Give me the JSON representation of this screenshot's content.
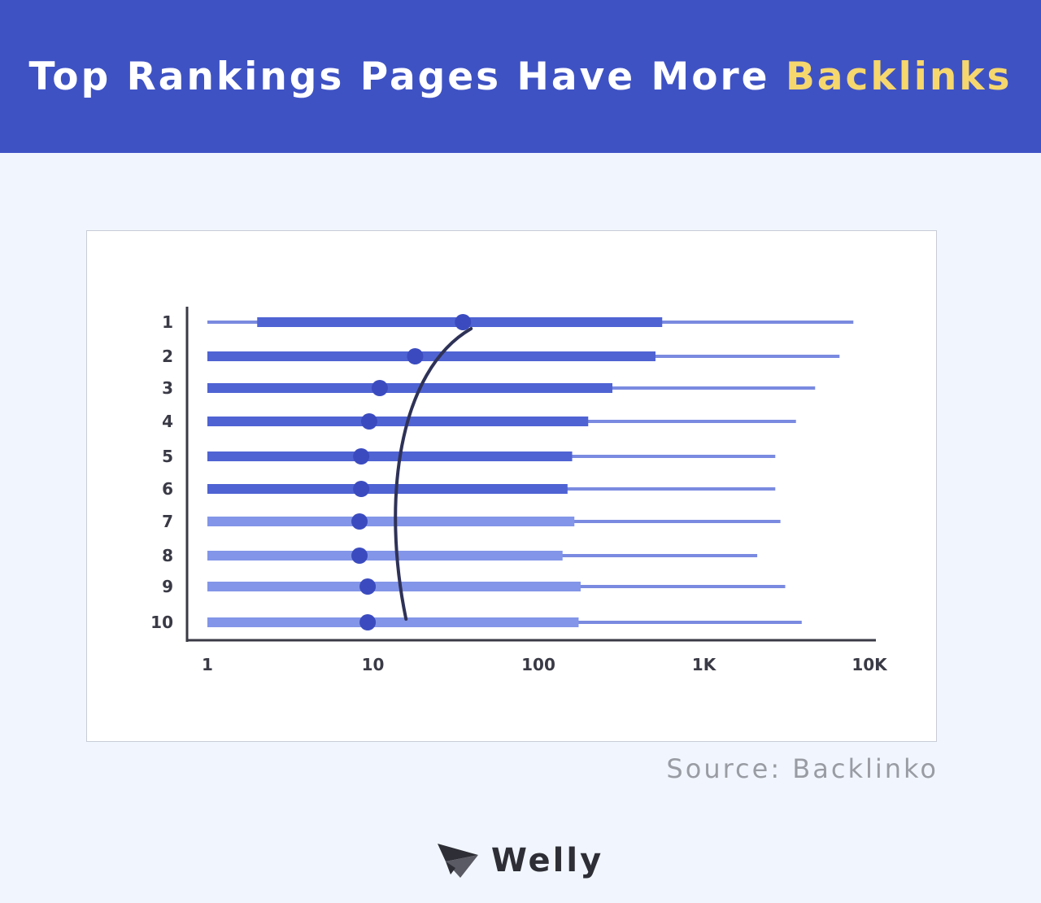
{
  "header": {
    "title_main": "Top Rankings Pages Have More",
    "title_highlight": "Backlinks",
    "bg_color": "#3f52c4",
    "highlight_color": "#f5d76e"
  },
  "chart_data": {
    "type": "bar",
    "title": "Top Rankings Pages Have More Backlinks",
    "x_scale": "log",
    "xlim": [
      1,
      10000
    ],
    "x_ticks": [
      1,
      10,
      100,
      1000,
      10000
    ],
    "x_tick_labels": [
      "1",
      "10",
      "100",
      "1K",
      "10K"
    ],
    "categories": [
      "1",
      "2",
      "3",
      "4",
      "5",
      "6",
      "7",
      "8",
      "9",
      "10"
    ],
    "series": [
      {
        "whisker_low": 1,
        "box_low": 2,
        "median": 35,
        "box_high": 560,
        "whisker_high": 8000
      },
      {
        "whisker_low": 1,
        "box_low": 1,
        "median": 18,
        "box_high": 510,
        "whisker_high": 6600
      },
      {
        "whisker_low": 1,
        "box_low": 1,
        "median": 11,
        "box_high": 280,
        "whisker_high": 4700
      },
      {
        "whisker_low": 1,
        "box_low": 1,
        "median": 9.5,
        "box_high": 200,
        "whisker_high": 3600
      },
      {
        "whisker_low": 1,
        "box_low": 1,
        "median": 8.5,
        "box_high": 160,
        "whisker_high": 2700
      },
      {
        "whisker_low": 1,
        "box_low": 1,
        "median": 8.5,
        "box_high": 150,
        "whisker_high": 2700
      },
      {
        "whisker_low": 1,
        "box_low": 1,
        "median": 8.3,
        "box_high": 165,
        "whisker_high": 2900
      },
      {
        "whisker_low": 1,
        "box_low": 1,
        "median": 8.3,
        "box_high": 140,
        "whisker_high": 2100
      },
      {
        "whisker_low": 1,
        "box_low": 1,
        "median": 9.3,
        "box_high": 180,
        "whisker_high": 3100
      },
      {
        "whisker_low": 1,
        "box_low": 1,
        "median": 9.3,
        "box_high": 175,
        "whisker_high": 3900
      }
    ],
    "colors": {
      "dark_bar": "#4f63d3",
      "light_bar": "#8395e8",
      "whisker": "#7a8ae0",
      "median_dot": "#3b4bbf",
      "trend_line": "#2f3257",
      "axis": "#3a3a46"
    }
  },
  "source": {
    "text": "Source: Backlinko"
  },
  "brand": {
    "name": "Welly",
    "logo_icon": "paper-plane-icon"
  }
}
